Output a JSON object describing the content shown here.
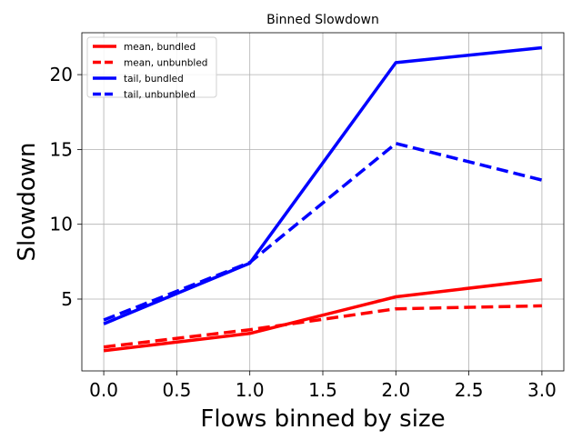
{
  "chart_data": {
    "type": "line",
    "title": "Binned Slowdown",
    "xlabel": "Flows binned by size",
    "ylabel": "Slowdown",
    "x": [
      0,
      1,
      2,
      3
    ],
    "xlim": [
      -0.15,
      3.15
    ],
    "ylim": [
      0.2,
      22.8
    ],
    "xticks": [
      "0.0",
      "0.5",
      "1.0",
      "1.5",
      "2.0",
      "2.5",
      "3.0"
    ],
    "yticks": [
      "5",
      "10",
      "15",
      "20"
    ],
    "grid": true,
    "legend_position": "upper-left",
    "series": [
      {
        "name": "mean, bundled",
        "color": "#ff0000",
        "dashed": false,
        "values": [
          1.55,
          2.7,
          5.15,
          6.3
        ]
      },
      {
        "name": "mean, unbunbled",
        "color": "#ff0000",
        "dashed": true,
        "values": [
          1.8,
          2.95,
          4.35,
          4.55
        ]
      },
      {
        "name": "tail, bundled",
        "color": "#0000ff",
        "dashed": false,
        "values": [
          3.35,
          7.4,
          20.8,
          21.8
        ]
      },
      {
        "name": "tail, unbunbled",
        "color": "#0000ff",
        "dashed": true,
        "values": [
          3.6,
          7.45,
          15.4,
          12.95
        ]
      }
    ]
  }
}
